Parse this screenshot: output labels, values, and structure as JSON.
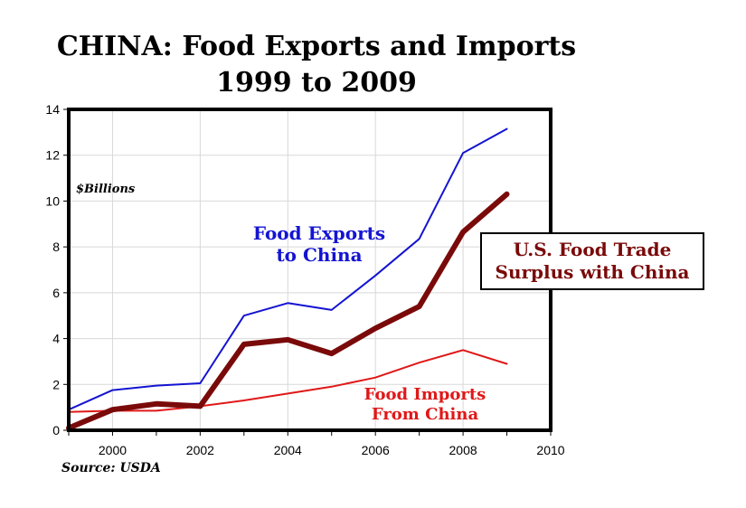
{
  "chart_data": {
    "type": "line",
    "title_line1": "CHINA: Food Exports and Imports",
    "title_line2": "1999 to 2009",
    "units_label": "$Billions",
    "source": "Source: USDA",
    "x": [
      1999,
      2000,
      2001,
      2002,
      2003,
      2004,
      2005,
      2006,
      2007,
      2008,
      2009
    ],
    "xlim": [
      1999,
      2010
    ],
    "ylim": [
      0,
      14
    ],
    "x_ticks": [
      2000,
      2002,
      2004,
      2006,
      2008,
      2010
    ],
    "y_ticks": [
      0,
      2,
      4,
      6,
      8,
      10,
      12,
      14
    ],
    "grid": true,
    "series": [
      {
        "key": "exports",
        "label_lines": [
          "Food Exports",
          "to China"
        ],
        "color": "#1414d2",
        "values": [
          0.9,
          1.75,
          1.95,
          2.05,
          5.0,
          5.55,
          5.25,
          6.75,
          8.35,
          12.1,
          13.15
        ]
      },
      {
        "key": "imports",
        "label_lines": [
          "Food Imports",
          "From China"
        ],
        "color": "#e01818",
        "values": [
          0.8,
          0.85,
          0.85,
          1.05,
          1.3,
          1.6,
          1.9,
          2.3,
          2.95,
          3.5,
          2.9
        ]
      },
      {
        "key": "surplus",
        "label_lines": [
          "U.S. Food Trade",
          "Surplus with China"
        ],
        "color": "#7a0a0a",
        "values": [
          0.1,
          0.9,
          1.15,
          1.05,
          3.75,
          3.95,
          3.35,
          4.45,
          5.4,
          8.65,
          10.3
        ]
      }
    ]
  }
}
